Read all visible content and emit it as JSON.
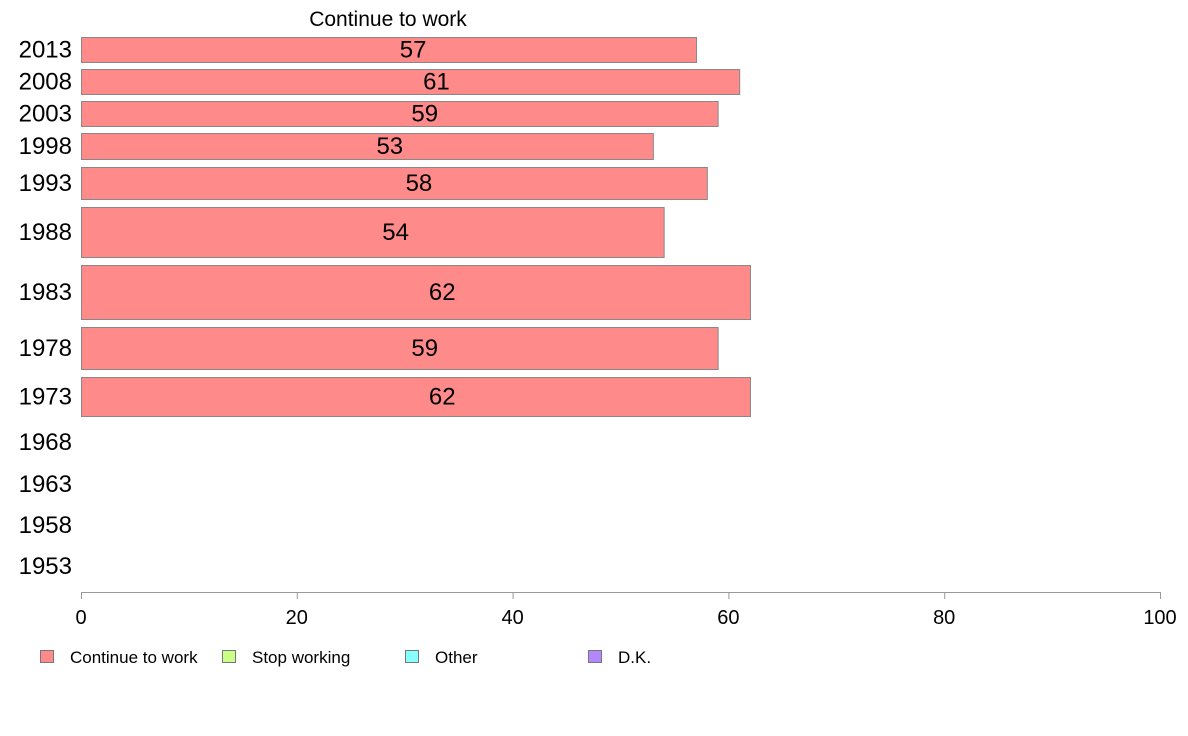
{
  "chart_data": {
    "type": "bar",
    "orientation": "horizontal",
    "title": "Continue to work",
    "categories": [
      "2013",
      "2008",
      "2003",
      "1998",
      "1993",
      "1988",
      "1983",
      "1978",
      "1973",
      "1968",
      "1963",
      "1958",
      "1953"
    ],
    "series": [
      {
        "name": "Continue to work",
        "color": "#ff8a8a",
        "values": [
          57,
          61,
          59,
          53,
          58,
          54,
          62,
          59,
          62,
          null,
          null,
          null,
          null
        ],
        "labels": [
          "57",
          "61",
          "59",
          "53",
          "58",
          "54",
          "62",
          "59",
          "62",
          "",
          "",
          "",
          ""
        ]
      }
    ],
    "xlim": [
      0,
      100
    ],
    "xticks": [
      "0",
      "20",
      "40",
      "60",
      "80",
      "100"
    ],
    "grid": false,
    "legend": {
      "placement": "bottom-left",
      "entries": [
        {
          "label": "Continue to work",
          "color": "#ff8a8a"
        },
        {
          "label": "Stop working",
          "color": "#ccff88"
        },
        {
          "label": "Other",
          "color": "#88ffff"
        },
        {
          "label": "D.K.",
          "color": "#b388ff"
        }
      ]
    }
  }
}
